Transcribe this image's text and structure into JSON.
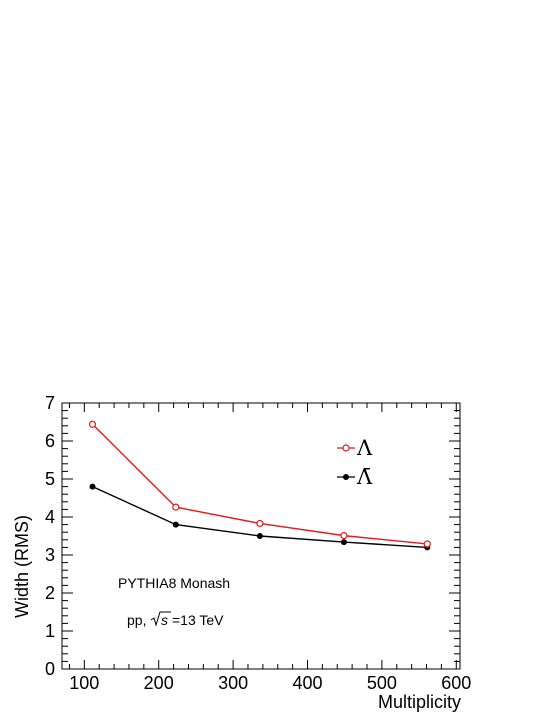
{
  "chart_data": {
    "type": "line",
    "xlabel": "Multiplicity",
    "ylabel": "Width (RMS)",
    "xlim": [
      70,
      605
    ],
    "ylim": [
      0,
      7
    ],
    "x_ticks": [
      100,
      200,
      300,
      400,
      500,
      600
    ],
    "y_ticks": [
      0,
      1,
      2,
      3,
      4,
      5,
      6,
      7
    ],
    "x_tick_labels": [
      "100",
      "200",
      "300",
      "400",
      "500",
      "600"
    ],
    "y_tick_labels": [
      "0",
      "1",
      "2",
      "3",
      "4",
      "5",
      "6",
      "7"
    ],
    "grid": false,
    "legend_position": "top-right",
    "series": [
      {
        "name": "Λ",
        "color": "#e31a1c",
        "marker": "open-circle",
        "x": [
          111,
          223,
          336,
          449,
          561
        ],
        "values": [
          6.44,
          4.26,
          3.83,
          3.51,
          3.29
        ]
      },
      {
        "name": "Λ̄",
        "color": "#000000",
        "marker": "filled-circle",
        "x": [
          111,
          223,
          336,
          449,
          561
        ],
        "values": [
          4.8,
          3.8,
          3.5,
          3.34,
          3.2
        ]
      }
    ],
    "annotations": {
      "generator": "PYTHIA8 Monash",
      "system_prefix": "pp,",
      "energy": "=13 TeV"
    }
  }
}
